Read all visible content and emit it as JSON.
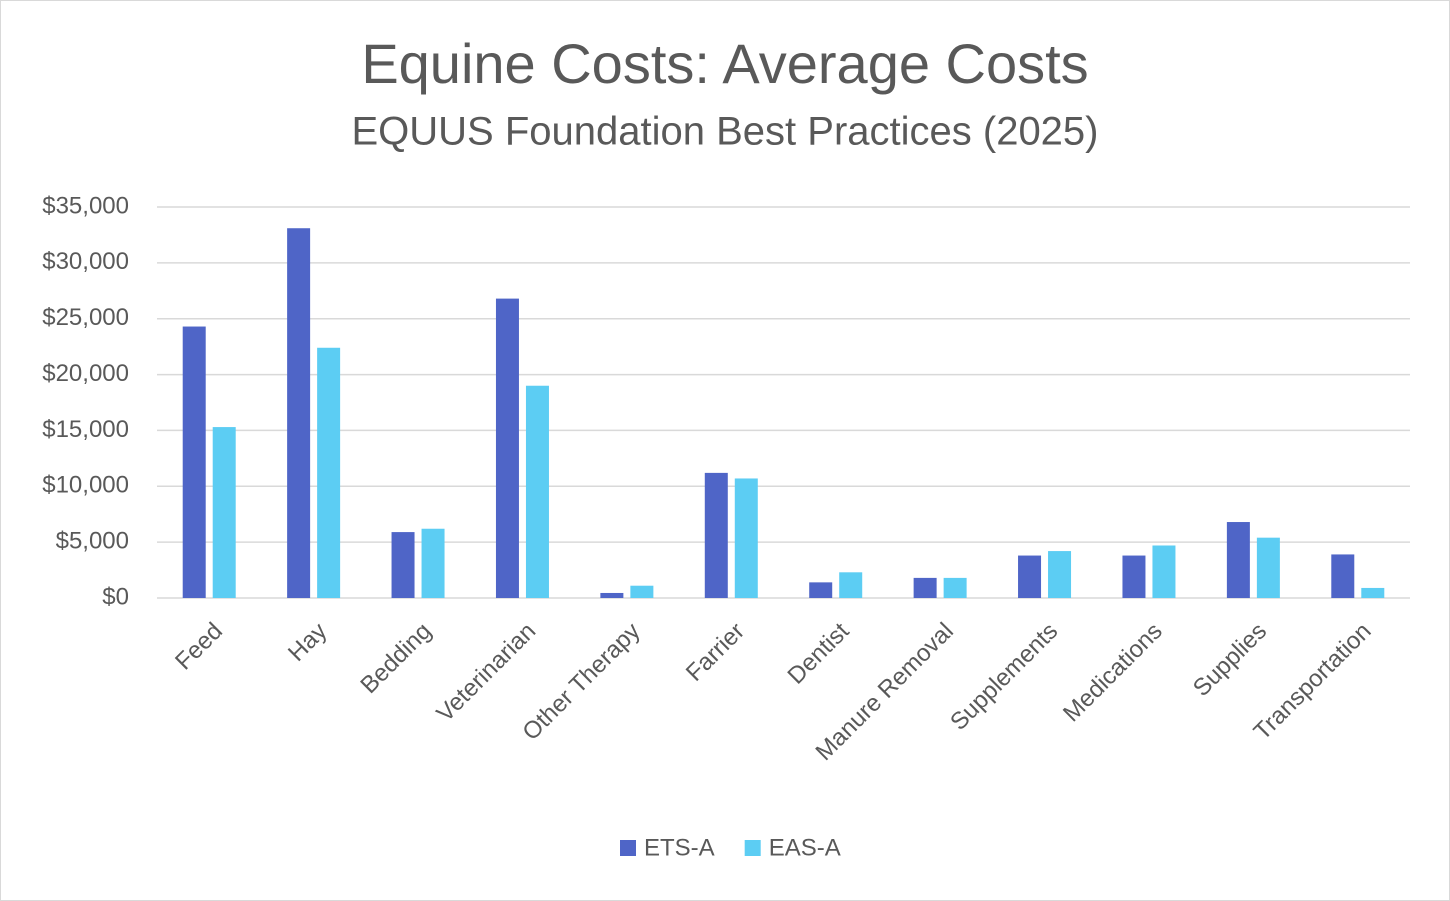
{
  "chart_data": {
    "type": "bar",
    "title": "Equine Costs: Average Costs",
    "subtitle": "EQUUS Foundation Best Practices (2025)",
    "categories": [
      "Feed",
      "Hay",
      "Bedding",
      "Veterinarian",
      "Other Therapy",
      "Farrier",
      "Dentist",
      "Manure Removal",
      "Supplements",
      "Medications",
      "Supplies",
      "Transportation"
    ],
    "series": [
      {
        "name": "ETS-A",
        "color": "#4f65c7",
        "values": [
          24300,
          33100,
          5900,
          26800,
          450,
          11200,
          1400,
          1800,
          3800,
          3800,
          6800,
          3900
        ]
      },
      {
        "name": "EAS-A",
        "color": "#5ccdf3",
        "values": [
          15300,
          22400,
          6200,
          19000,
          1100,
          10700,
          2300,
          1800,
          4200,
          4700,
          5400,
          900
        ]
      }
    ],
    "ylim": [
      0,
      35000
    ],
    "yticks": [
      {
        "value": 0,
        "label": "$0"
      },
      {
        "value": 5000,
        "label": "$5,000"
      },
      {
        "value": 10000,
        "label": "$10,000"
      },
      {
        "value": 15000,
        "label": "$15,000"
      },
      {
        "value": 20000,
        "label": "$20,000"
      },
      {
        "value": 25000,
        "label": "$25,000"
      },
      {
        "value": 30000,
        "label": "$30,000"
      },
      {
        "value": 35000,
        "label": "$35,000"
      }
    ],
    "grid": true,
    "legend": "bottom"
  }
}
